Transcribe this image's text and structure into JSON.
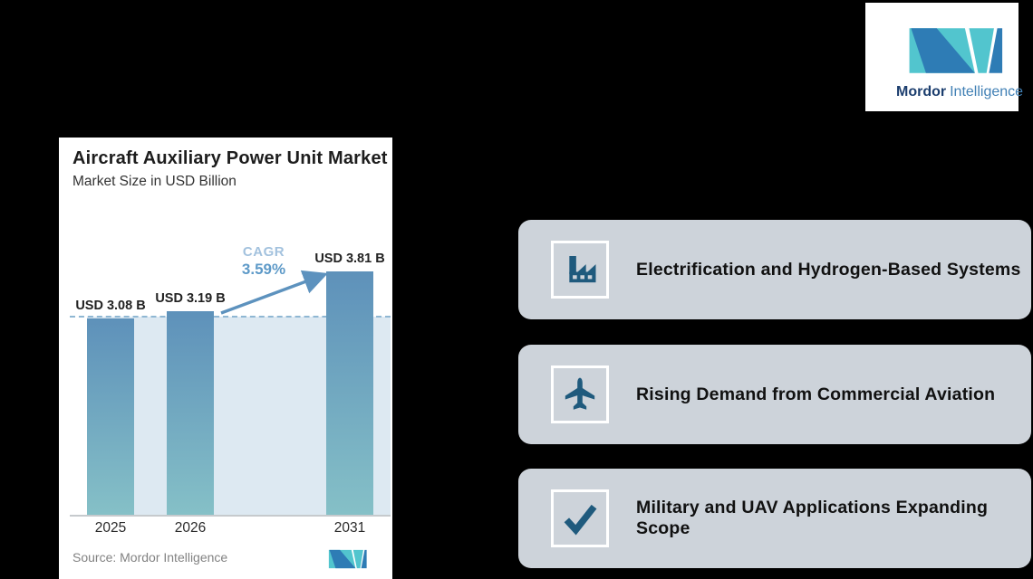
{
  "brand": {
    "name_primary": "Mordor",
    "name_secondary": "Intelligence"
  },
  "chart_card": {
    "title": "Aircraft Auxiliary Power Unit Market",
    "subtitle": "Market Size in USD Billion",
    "cagr_label": "CAGR",
    "cagr_value": "3.59%",
    "source": "Source: Mordor Intelligence"
  },
  "chart_data": {
    "type": "bar",
    "title": "Aircraft Auxiliary Power Unit Market",
    "ylabel": "Market Size in USD Billion",
    "categories": [
      "2025",
      "2026",
      "2031"
    ],
    "values": [
      3.08,
      3.19,
      3.81
    ],
    "value_labels": [
      "USD 3.08 B",
      "USD 3.19 B",
      "USD 3.81 B"
    ],
    "cagr_percent": 3.59,
    "reference_line_value": 3.08,
    "ylim": [
      0,
      4.2
    ],
    "grid": false,
    "legend": "none",
    "bar_color_top": "#5e91ba",
    "bar_color_bottom": "#85c0c7",
    "plot_fill_color": "#dde9f2",
    "dashed_line_color": "#8fb7d3",
    "arrow_color": "#5d92be"
  },
  "highlights": [
    {
      "icon": "factory-icon",
      "label": "Electrification and Hydrogen-Based Systems"
    },
    {
      "icon": "airplane-icon",
      "label": "Rising Demand from Commercial Aviation"
    },
    {
      "icon": "checkmark-icon",
      "label": "Military and UAV Applications Expanding Scope"
    }
  ],
  "colors": {
    "page_background": "#000000",
    "card_background": "#ffffff",
    "highlight_box_background": "#cdd3da",
    "highlight_icon_color": "#1f5a7d",
    "brand_primary": "#1c3e6e",
    "brand_secondary": "#4180b5",
    "logo_teal": "#52c5ce",
    "logo_blue": "#2e7cb5"
  }
}
